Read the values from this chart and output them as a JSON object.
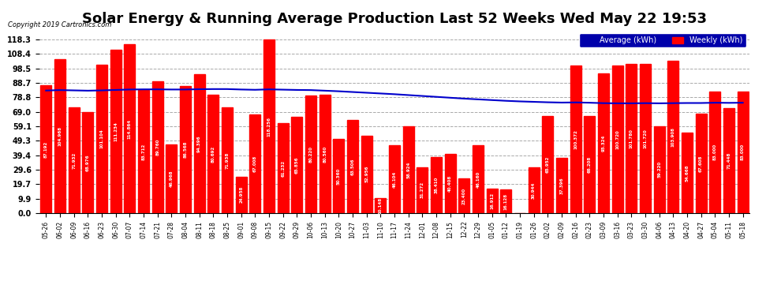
{
  "title": "Solar Energy & Running Average Production Last 52 Weeks Wed May 22 19:53",
  "copyright": "Copyright 2019 Cartronics.com",
  "categories": [
    "05-26",
    "06-02",
    "06-09",
    "06-16",
    "06-23",
    "06-30",
    "07-07",
    "07-14",
    "07-21",
    "07-28",
    "08-04",
    "08-11",
    "08-18",
    "08-25",
    "09-01",
    "09-08",
    "09-15",
    "09-22",
    "09-29",
    "10-06",
    "10-13",
    "10-20",
    "10-27",
    "11-03",
    "11-10",
    "11-17",
    "11-24",
    "12-01",
    "12-08",
    "12-15",
    "12-22",
    "12-29",
    "01-05",
    "01-12",
    "01-19",
    "01-26",
    "02-02",
    "02-09",
    "02-16",
    "02-23",
    "03-09",
    "03-16",
    "03-23",
    "03-30",
    "04-06",
    "04-13",
    "04-20",
    "04-27",
    "05-04",
    "05-11",
    "05-18"
  ],
  "weekly_values": [
    87.192,
    104.968,
    71.932,
    68.976,
    101.104,
    111.234,
    114.864,
    83.712,
    89.76,
    46.968,
    86.568,
    94.396,
    80.692,
    71.938,
    24.958,
    67.008,
    118.256,
    61.232,
    65.856,
    80.22,
    80.56,
    50.36,
    63.506,
    52.956,
    10.148,
    46.104,
    58.924,
    31.272,
    38.41,
    40.408,
    23.4,
    46.16,
    16.912,
    16.128,
    0.0,
    30.944,
    65.952,
    37.396,
    100.372,
    66.208,
    95.324,
    100.72,
    101.78,
    101.72,
    59.22,
    103.908,
    54.668,
    67.608,
    83.0,
    71.448,
    83.0
  ],
  "average_values": [
    83.5,
    83.8,
    83.6,
    83.4,
    83.6,
    83.9,
    84.2,
    84.3,
    84.3,
    84.2,
    84.2,
    84.4,
    84.5,
    84.5,
    84.2,
    84.0,
    84.3,
    84.1,
    83.9,
    83.8,
    83.4,
    83.0,
    82.5,
    82.0,
    81.5,
    81.0,
    80.4,
    79.8,
    79.2,
    78.6,
    78.0,
    77.5,
    77.0,
    76.5,
    76.1,
    75.8,
    75.5,
    75.3,
    75.4,
    75.2,
    74.9,
    74.8,
    74.8,
    74.9,
    74.8,
    74.9,
    75.0,
    75.0,
    75.2,
    75.1,
    75.2
  ],
  "bar_color": "#FF0000",
  "line_color": "#0000CC",
  "background_color": "#FFFFFF",
  "grid_color": "#AAAAAA",
  "yticks": [
    0.0,
    9.9,
    19.7,
    29.6,
    39.4,
    49.3,
    59.1,
    69.0,
    78.8,
    88.7,
    98.5,
    108.4,
    118.3
  ],
  "ylim": [
    0,
    125
  ],
  "title_fontsize": 13,
  "legend_avg_color": "#0000AA",
  "legend_weekly_color": "#FF0000",
  "legend_avg_label": "Average (kWh)",
  "legend_weekly_label": "Weekly (kWh)"
}
